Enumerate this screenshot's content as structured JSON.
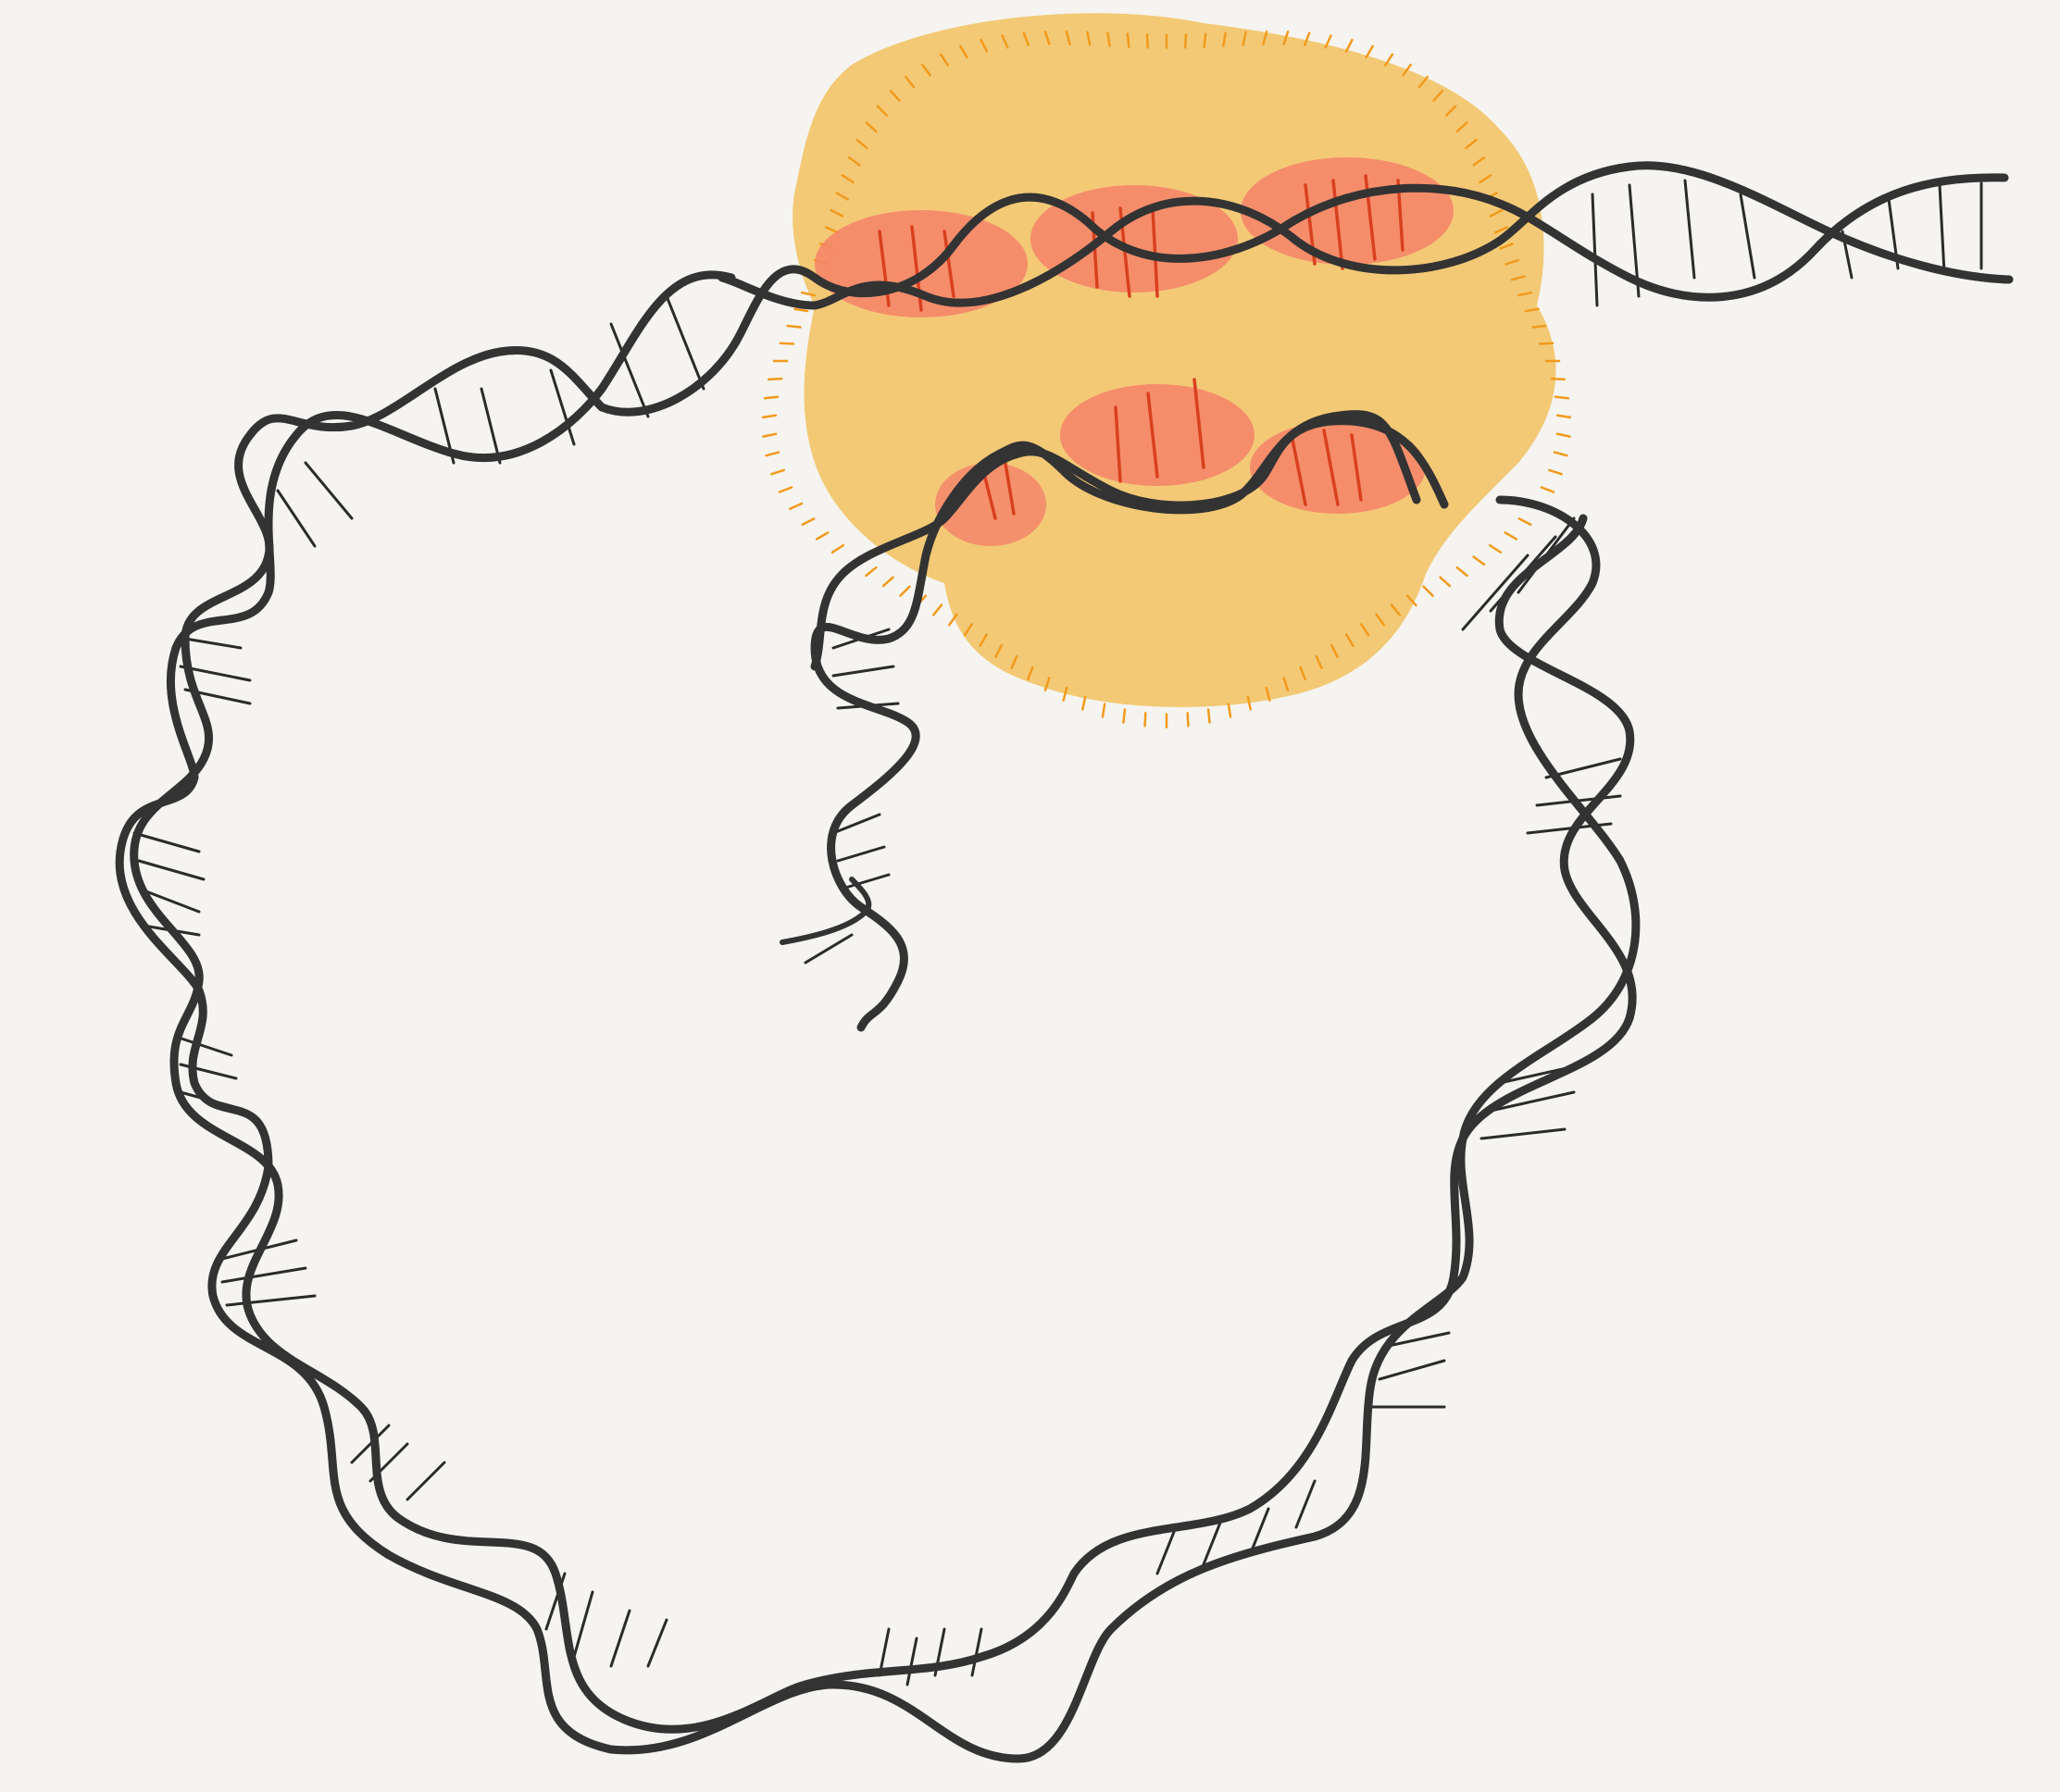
{
  "diagram": {
    "subject": "dna-helix-loop-bound-by-protein",
    "colors": {
      "background": "#f5f4f0",
      "strand": "#333333",
      "base_pair": "#2b2b2b",
      "protein_blob": "#f3c468",
      "protein_fuzz": "#f29a1c",
      "contact_region": "#f4826a",
      "contact_base_pair": "#d9401e"
    }
  }
}
